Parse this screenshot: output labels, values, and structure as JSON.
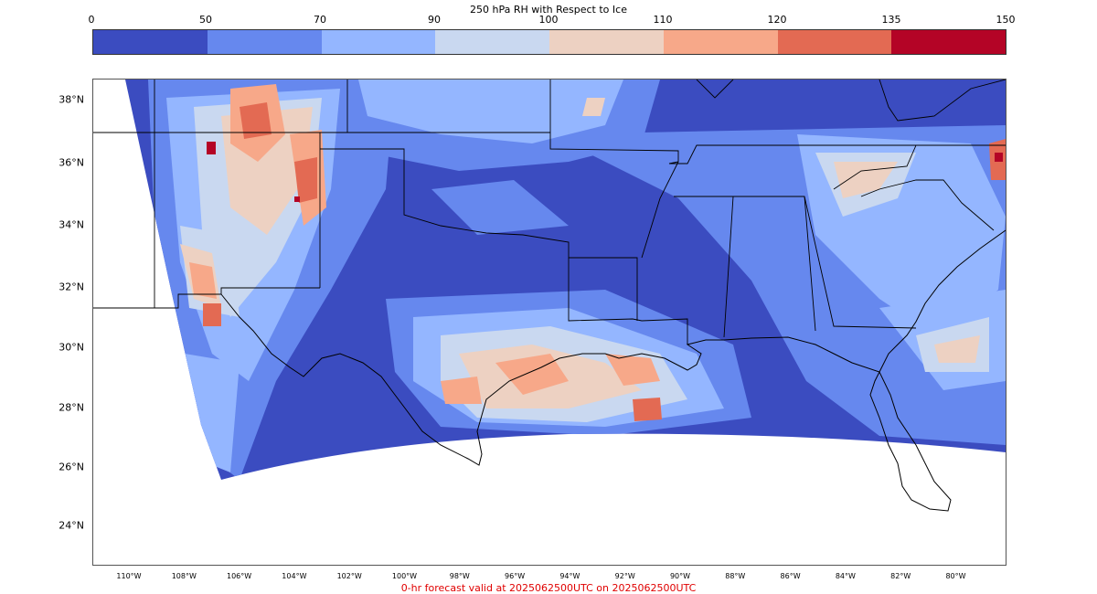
{
  "colorbar": {
    "title": "250 hPa RH with Respect to Ice",
    "ticks": [
      "0",
      "50",
      "70",
      "90",
      "100",
      "110",
      "120",
      "135",
      "150"
    ],
    "colors": [
      "#3b4cc0",
      "#6688ee",
      "#94b6ff",
      "#c9d8f0",
      "#edd1c2",
      "#f7a889",
      "#e36a53",
      "#b40426"
    ]
  },
  "map": {
    "lat_labels": [
      "38°N",
      "36°N",
      "34°N",
      "32°N",
      "30°N",
      "28°N",
      "26°N",
      "24°N"
    ],
    "lon_labels": [
      "110°W",
      "108°W",
      "106°W",
      "104°W",
      "102°W",
      "100°W",
      "98°W",
      "96°W",
      "94°W",
      "92°W",
      "90°W",
      "88°W",
      "86°W",
      "84°W",
      "82°W",
      "80°W"
    ]
  },
  "footer": {
    "valid_text": "0-hr forecast valid at 2025062500UTC on 2025062500UTC"
  }
}
